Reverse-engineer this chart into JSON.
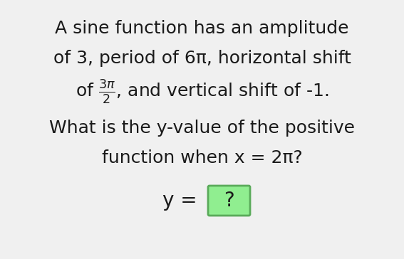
{
  "background_color": "#f0f0f0",
  "line1": "A sine function has an amplitude",
  "line2": "of 3, period of 6π, horizontal shift",
  "line3_full": "of $\\frac{3\\pi}{2}$, and vertical shift of -1.",
  "line4": "What is the y-value of the positive",
  "line5": "function when x = 2π?",
  "line6_left": "y = ",
  "line6_box": "?",
  "text_color": "#1a1a1a",
  "box_fill_color": "#90ee90",
  "box_edge_color": "#5aaa5a",
  "font_size_main": 18,
  "font_size_box": 20
}
